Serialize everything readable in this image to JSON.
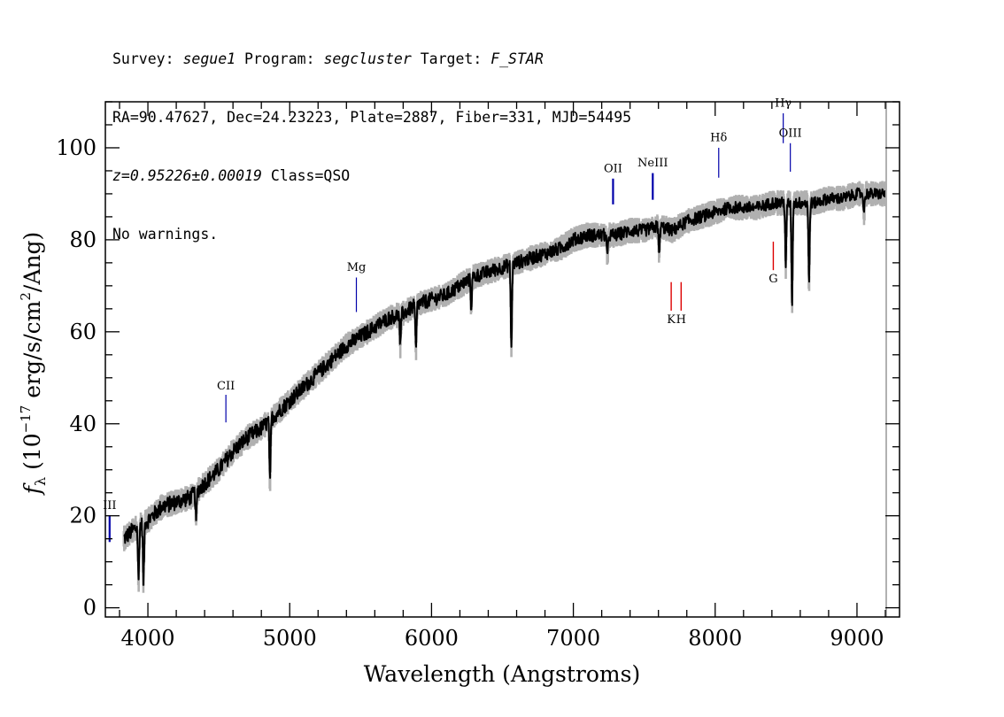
{
  "header": {
    "line1": {
      "survey_label": "Survey: ",
      "survey": "segue1",
      "program_label": " Program: ",
      "program": "segcluster",
      "target_label": " Target: ",
      "target": "F_STAR"
    },
    "line2": "RA=90.47627, Dec=24.23223, Plate=2887, Fiber=331, MJD=54495",
    "line3": {
      "z": "z=0.95226±0.00019",
      "class": " Class=QSO"
    },
    "line4": "No warnings."
  },
  "chart_data": {
    "type": "line",
    "xlabel": "Wavelength (Angstroms)",
    "ylabel_prefix": "f",
    "ylabel_sub": "λ",
    "ylabel_main": " (10",
    "ylabel_exp1": "−17",
    "ylabel_mid": " erg/s/cm",
    "ylabel_exp2": "2",
    "ylabel_end": "/Ang)",
    "xlim": [
      3700,
      9300
    ],
    "ylim": [
      -2,
      110
    ],
    "xticks": [
      4000,
      5000,
      6000,
      7000,
      8000,
      9000
    ],
    "yticks": [
      0,
      20,
      40,
      60,
      80,
      100
    ],
    "colors": {
      "flux": "#000000",
      "error_band": "#b0b0b0",
      "emission": "#0000aa",
      "absorption": "#dd0000"
    },
    "series": [
      {
        "x": [
          3830,
          3900,
          3950,
          4000,
          4100,
          4200,
          4300,
          4400,
          4500,
          4600,
          4700,
          4800,
          4900,
          5000,
          5100,
          5200,
          5300,
          5400,
          5500,
          5600,
          5700,
          5800,
          5900,
          6000,
          6100,
          6200,
          6300,
          6400,
          6500,
          6600,
          6700,
          6800,
          6900,
          7000,
          7100,
          7200,
          7300,
          7400,
          7500,
          7600,
          7700,
          7800,
          7900,
          8000,
          8100,
          8200,
          8300,
          8400,
          8500,
          8600,
          8700,
          8800,
          8900,
          9000,
          9100,
          9200
        ],
        "y": [
          15,
          17,
          18,
          19,
          22,
          23,
          24,
          27,
          30,
          34,
          37,
          39,
          42,
          45,
          48,
          51,
          54,
          57,
          59,
          61,
          63,
          64,
          66,
          67,
          68,
          70,
          72,
          73,
          74,
          75,
          76,
          77,
          78,
          80,
          81,
          81,
          81,
          82,
          82,
          83,
          82,
          84,
          85,
          86,
          87,
          87,
          87,
          88,
          88,
          88,
          88,
          89,
          89,
          90,
          90,
          90
        ]
      }
    ],
    "absorption_dips": [
      {
        "x": 3934,
        "depth": 12
      },
      {
        "x": 3969,
        "depth": 13
      },
      {
        "x": 4340,
        "depth": 6
      },
      {
        "x": 4861,
        "depth": 14
      },
      {
        "x": 5780,
        "depth": 7
      },
      {
        "x": 5890,
        "depth": 10
      },
      {
        "x": 6280,
        "depth": 6
      },
      {
        "x": 6563,
        "depth": 18
      },
      {
        "x": 7240,
        "depth": 5
      },
      {
        "x": 7605,
        "depth": 6
      },
      {
        "x": 8498,
        "depth": 14
      },
      {
        "x": 8542,
        "depth": 22
      },
      {
        "x": 8662,
        "depth": 18
      },
      {
        "x": 9050,
        "depth": 4
      }
    ],
    "emission_lines": [
      {
        "label": "CII",
        "x": 4550,
        "y1": 40.3,
        "y2": 46.3,
        "label_y": 47.5
      },
      {
        "label": "Mg",
        "x": 5470,
        "y1": 64.3,
        "y2": 71.8,
        "label_y": 73.2
      },
      {
        "label": "OII",
        "x": 7280,
        "y1": 87.7,
        "y2": 93.3,
        "label_y": 94.7
      },
      {
        "label": "NeIII",
        "x": 7560,
        "y1": 88.7,
        "y2": 94.5,
        "label_y": 96
      },
      {
        "label": "Hδ",
        "x": 8025,
        "y1": 93.5,
        "y2": 100,
        "label_y": 101.4
      },
      {
        "label": "Hγ",
        "x": 8480,
        "y1": 101,
        "y2": 107.5,
        "label_y": 108.9
      },
      {
        "label": "OIII",
        "x": 8530,
        "y1": 94.8,
        "y2": 101,
        "label_y": 102.4
      },
      {
        "label": "III",
        "x": 3730,
        "y1": 14.3,
        "y2": 20.1,
        "label_y": 21.5
      }
    ],
    "absorption_lines": [
      {
        "label": "K",
        "x": 7690,
        "y1": 64.6,
        "y2": 70.8,
        "label_y": 61.9
      },
      {
        "label": "H",
        "x": 7760,
        "y1": 64.6,
        "y2": 70.8,
        "label_y": 61.9
      },
      {
        "label": "G",
        "x": 8410,
        "y1": 73.4,
        "y2": 79.6,
        "label_y": 70.7
      }
    ]
  }
}
